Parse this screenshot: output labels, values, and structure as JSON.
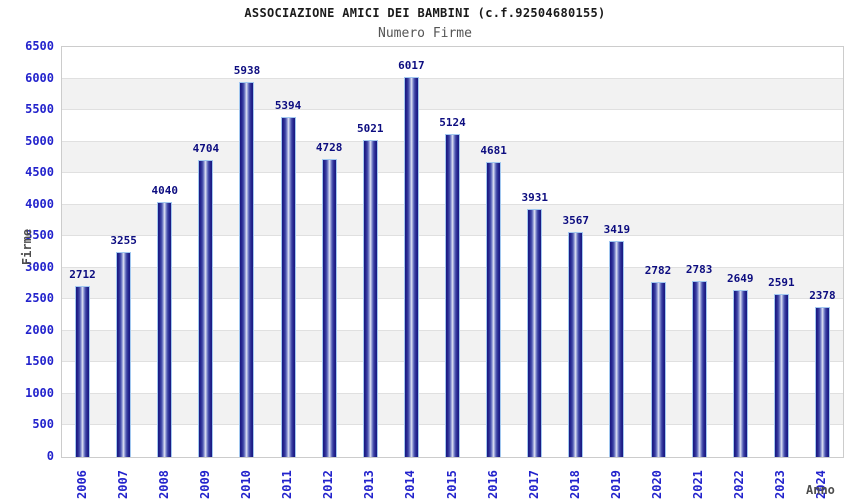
{
  "header": {
    "title": "ASSOCIAZIONE AMICI DEI BAMBINI (c.f.92504680155)",
    "subtitle": "Numero Firme"
  },
  "chart_data": {
    "type": "bar",
    "title": "ASSOCIAZIONE AMICI DEI BAMBINI (c.f.92504680155)",
    "subtitle": "Numero Firme",
    "xlabel": "Anno",
    "ylabel": "Firme",
    "categories": [
      "2006",
      "2007",
      "2008",
      "2009",
      "2010",
      "2011",
      "2012",
      "2013",
      "2014",
      "2015",
      "2016",
      "2017",
      "2018",
      "2019",
      "2020",
      "2021",
      "2022",
      "2023",
      "2024"
    ],
    "values": [
      2712,
      3255,
      4040,
      4704,
      5938,
      5394,
      4728,
      5021,
      6017,
      5124,
      4681,
      3931,
      3567,
      3419,
      2782,
      2783,
      2649,
      2591,
      2378
    ],
    "ylim": [
      0,
      6500
    ],
    "ytick_step": 500,
    "yticks": [
      0,
      500,
      1000,
      1500,
      2000,
      2500,
      3000,
      3500,
      4000,
      4500,
      5000,
      5500,
      6000,
      6500
    ],
    "grid": true,
    "banded_background": true,
    "legend": "none",
    "colors": {
      "tick_label": "#2323cc",
      "value_label": "#0d0d80",
      "title": "#1a1a1a",
      "subtitle": "#555555",
      "axis_label": "#4d4d4d",
      "band_gray": "#f2f2f2",
      "band_white": "#ffffff",
      "grid_line": "#e0e0e0",
      "plot_border": "#cccccc",
      "bar_border": "#a2c8f0",
      "bar_dark": "#191980",
      "bar_mid": "#7e88cc",
      "bar_light": "#e2e6f5"
    }
  }
}
